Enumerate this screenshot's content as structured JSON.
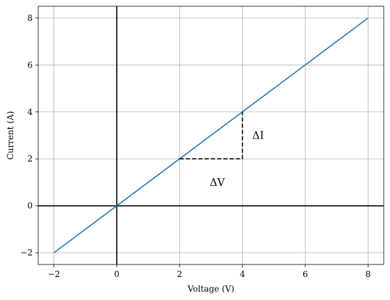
{
  "chart_data": {
    "type": "line",
    "title": "",
    "xlabel": "Voltage (V)",
    "ylabel": "Current (A)",
    "xlim": [
      -2.5,
      8.5
    ],
    "ylim": [
      -2.5,
      8.5
    ],
    "x_ticks": [
      -2,
      0,
      2,
      4,
      6,
      8
    ],
    "y_ticks": [
      -2,
      0,
      2,
      4,
      6,
      8
    ],
    "x_tick_labels": [
      "−2",
      "0",
      "2",
      "4",
      "6",
      "8"
    ],
    "y_tick_labels": [
      "−2",
      "0",
      "2",
      "4",
      "6",
      "8"
    ],
    "grid": true,
    "series": [
      {
        "color": "#1f77b4",
        "x": [
          -2,
          8
        ],
        "y": [
          -2,
          8
        ]
      }
    ],
    "reference_lines": {
      "x_zero": 0,
      "y_zero": 0,
      "color": "#000000"
    },
    "delta_triangle": {
      "x_start": 2,
      "x_end": 4,
      "y_start": 2,
      "y_end": 4
    },
    "annotations": [
      {
        "name": "delta-v-label",
        "text": "ΔV",
        "x": 3.2,
        "y": 1.0
      },
      {
        "name": "delta-i-label",
        "text": "ΔI",
        "x": 4.5,
        "y": 3.0
      }
    ]
  }
}
